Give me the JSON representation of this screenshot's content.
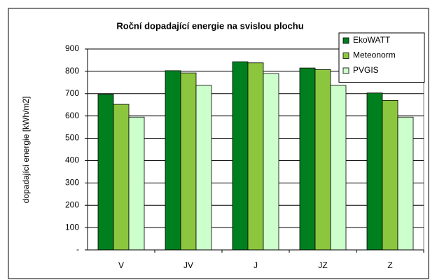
{
  "chart_data": {
    "type": "bar",
    "title": "Roční dopadající energie na svislou plochu",
    "y_label": "dopadající energie [kWh/m2]",
    "categories": [
      "V",
      "JV",
      "J",
      "JZ",
      "Z"
    ],
    "series": [
      {
        "name": "EkoWATT",
        "color": "#007f1f",
        "values": [
          697,
          803,
          843,
          815,
          703
        ]
      },
      {
        "name": "Meteonorm",
        "color": "#8cc63f",
        "values": [
          652,
          793,
          838,
          808,
          670
        ]
      },
      {
        "name": "PVGIS",
        "color": "#ccffcc",
        "values": [
          595,
          737,
          790,
          737,
          595
        ]
      }
    ],
    "ylim": [
      0,
      900
    ],
    "yticks": [
      {
        "value": 0,
        "label": "-"
      },
      100,
      200,
      300,
      400,
      500,
      600,
      700,
      800,
      900
    ],
    "grid": true,
    "legend": "top-right"
  }
}
